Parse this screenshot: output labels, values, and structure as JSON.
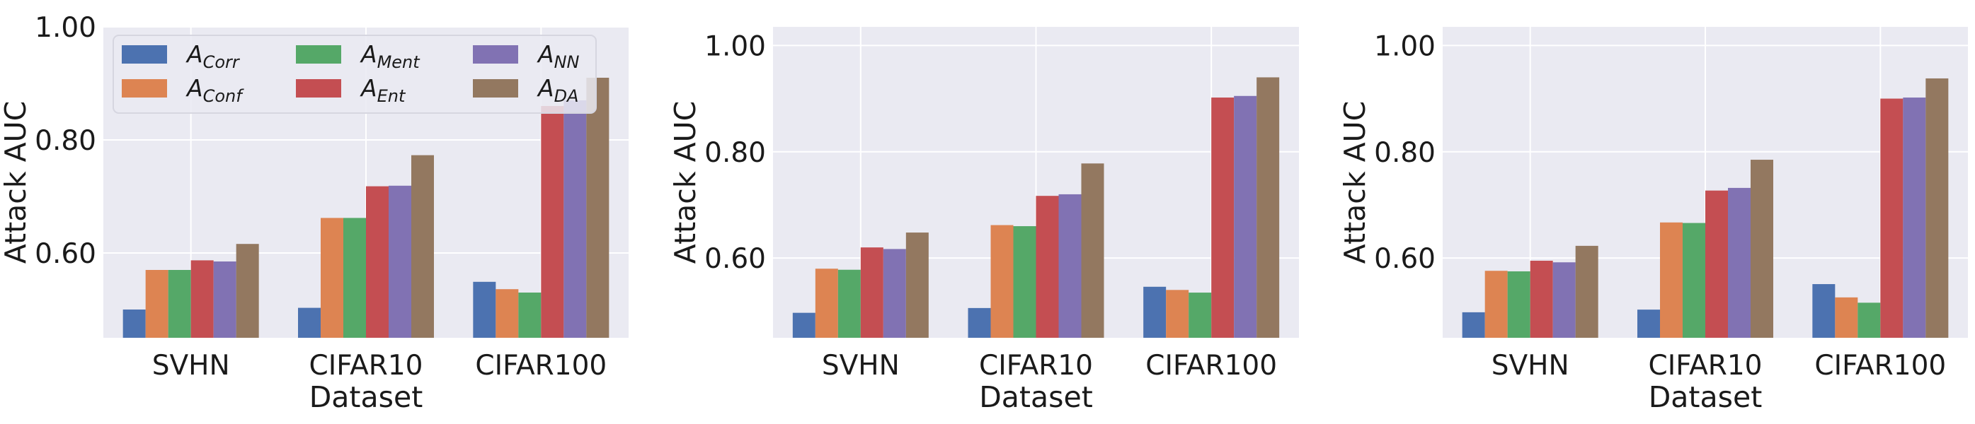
{
  "figure": {
    "layout": "three panels side by side, shared legend in first panel"
  },
  "colors": {
    "background": "#EAEAF2",
    "grid": "#FFFFFF",
    "series": [
      "#4C72B0",
      "#DD8452",
      "#55A868",
      "#C44E52",
      "#8172B3",
      "#937860"
    ]
  },
  "legend": {
    "placement": "top-left of first panel",
    "entries": [
      {
        "symbol": "A",
        "subscript": "Corr"
      },
      {
        "symbol": "A",
        "subscript": "Conf"
      },
      {
        "symbol": "A",
        "subscript": "Ment"
      },
      {
        "symbol": "A",
        "subscript": "Ent"
      },
      {
        "symbol": "A",
        "subscript": "NN"
      },
      {
        "symbol": "A",
        "subscript": "DA"
      }
    ]
  },
  "chart_data": [
    {
      "type": "bar",
      "title": "",
      "xlabel": "Dataset",
      "ylabel": "Attack AUC",
      "ylim": [
        0.45,
        1.0
      ],
      "yticks": [
        0.6,
        0.8,
        1.0
      ],
      "ytick_labels": [
        "0.60",
        "0.80",
        "1.00"
      ],
      "categories": [
        "SVHN",
        "CIFAR10",
        "CIFAR100"
      ],
      "grid": true,
      "series": [
        {
          "name": "A_Corr",
          "values": [
            0.5,
            0.503,
            0.549
          ]
        },
        {
          "name": "A_Conf",
          "values": [
            0.57,
            0.662,
            0.536
          ]
        },
        {
          "name": "A_Ment",
          "values": [
            0.57,
            0.662,
            0.53
          ]
        },
        {
          "name": "A_Ent",
          "values": [
            0.587,
            0.718,
            0.86
          ]
        },
        {
          "name": "A_NN",
          "values": [
            0.585,
            0.719,
            0.87
          ]
        },
        {
          "name": "A_DA",
          "values": [
            0.616,
            0.773,
            0.91
          ]
        }
      ]
    },
    {
      "type": "bar",
      "title": "",
      "xlabel": "Dataset",
      "ylabel": "Attack AUC",
      "ylim": [
        0.45,
        1.035
      ],
      "yticks": [
        0.6,
        0.8,
        1.0
      ],
      "ytick_labels": [
        "0.60",
        "0.80",
        "1.00"
      ],
      "categories": [
        "SVHN",
        "CIFAR10",
        "CIFAR100"
      ],
      "grid": true,
      "series": [
        {
          "name": "A_Corr",
          "values": [
            0.497,
            0.506,
            0.546
          ]
        },
        {
          "name": "A_Conf",
          "values": [
            0.58,
            0.662,
            0.54
          ]
        },
        {
          "name": "A_Ment",
          "values": [
            0.578,
            0.66,
            0.535
          ]
        },
        {
          "name": "A_Ent",
          "values": [
            0.62,
            0.717,
            0.902
          ]
        },
        {
          "name": "A_NN",
          "values": [
            0.617,
            0.72,
            0.905
          ]
        },
        {
          "name": "A_DA",
          "values": [
            0.648,
            0.778,
            0.94
          ]
        }
      ]
    },
    {
      "type": "bar",
      "title": "",
      "xlabel": "Dataset",
      "ylabel": "Attack AUC",
      "ylim": [
        0.45,
        1.035
      ],
      "yticks": [
        0.6,
        0.8,
        1.0
      ],
      "ytick_labels": [
        "0.60",
        "0.80",
        "1.00"
      ],
      "categories": [
        "SVHN",
        "CIFAR10",
        "CIFAR100"
      ],
      "grid": true,
      "series": [
        {
          "name": "A_Corr",
          "values": [
            0.498,
            0.503,
            0.551
          ]
        },
        {
          "name": "A_Conf",
          "values": [
            0.576,
            0.667,
            0.526
          ]
        },
        {
          "name": "A_Ment",
          "values": [
            0.575,
            0.666,
            0.516
          ]
        },
        {
          "name": "A_Ent",
          "values": [
            0.595,
            0.727,
            0.9
          ]
        },
        {
          "name": "A_NN",
          "values": [
            0.592,
            0.732,
            0.902
          ]
        },
        {
          "name": "A_DA",
          "values": [
            0.623,
            0.785,
            0.938
          ]
        }
      ]
    }
  ]
}
